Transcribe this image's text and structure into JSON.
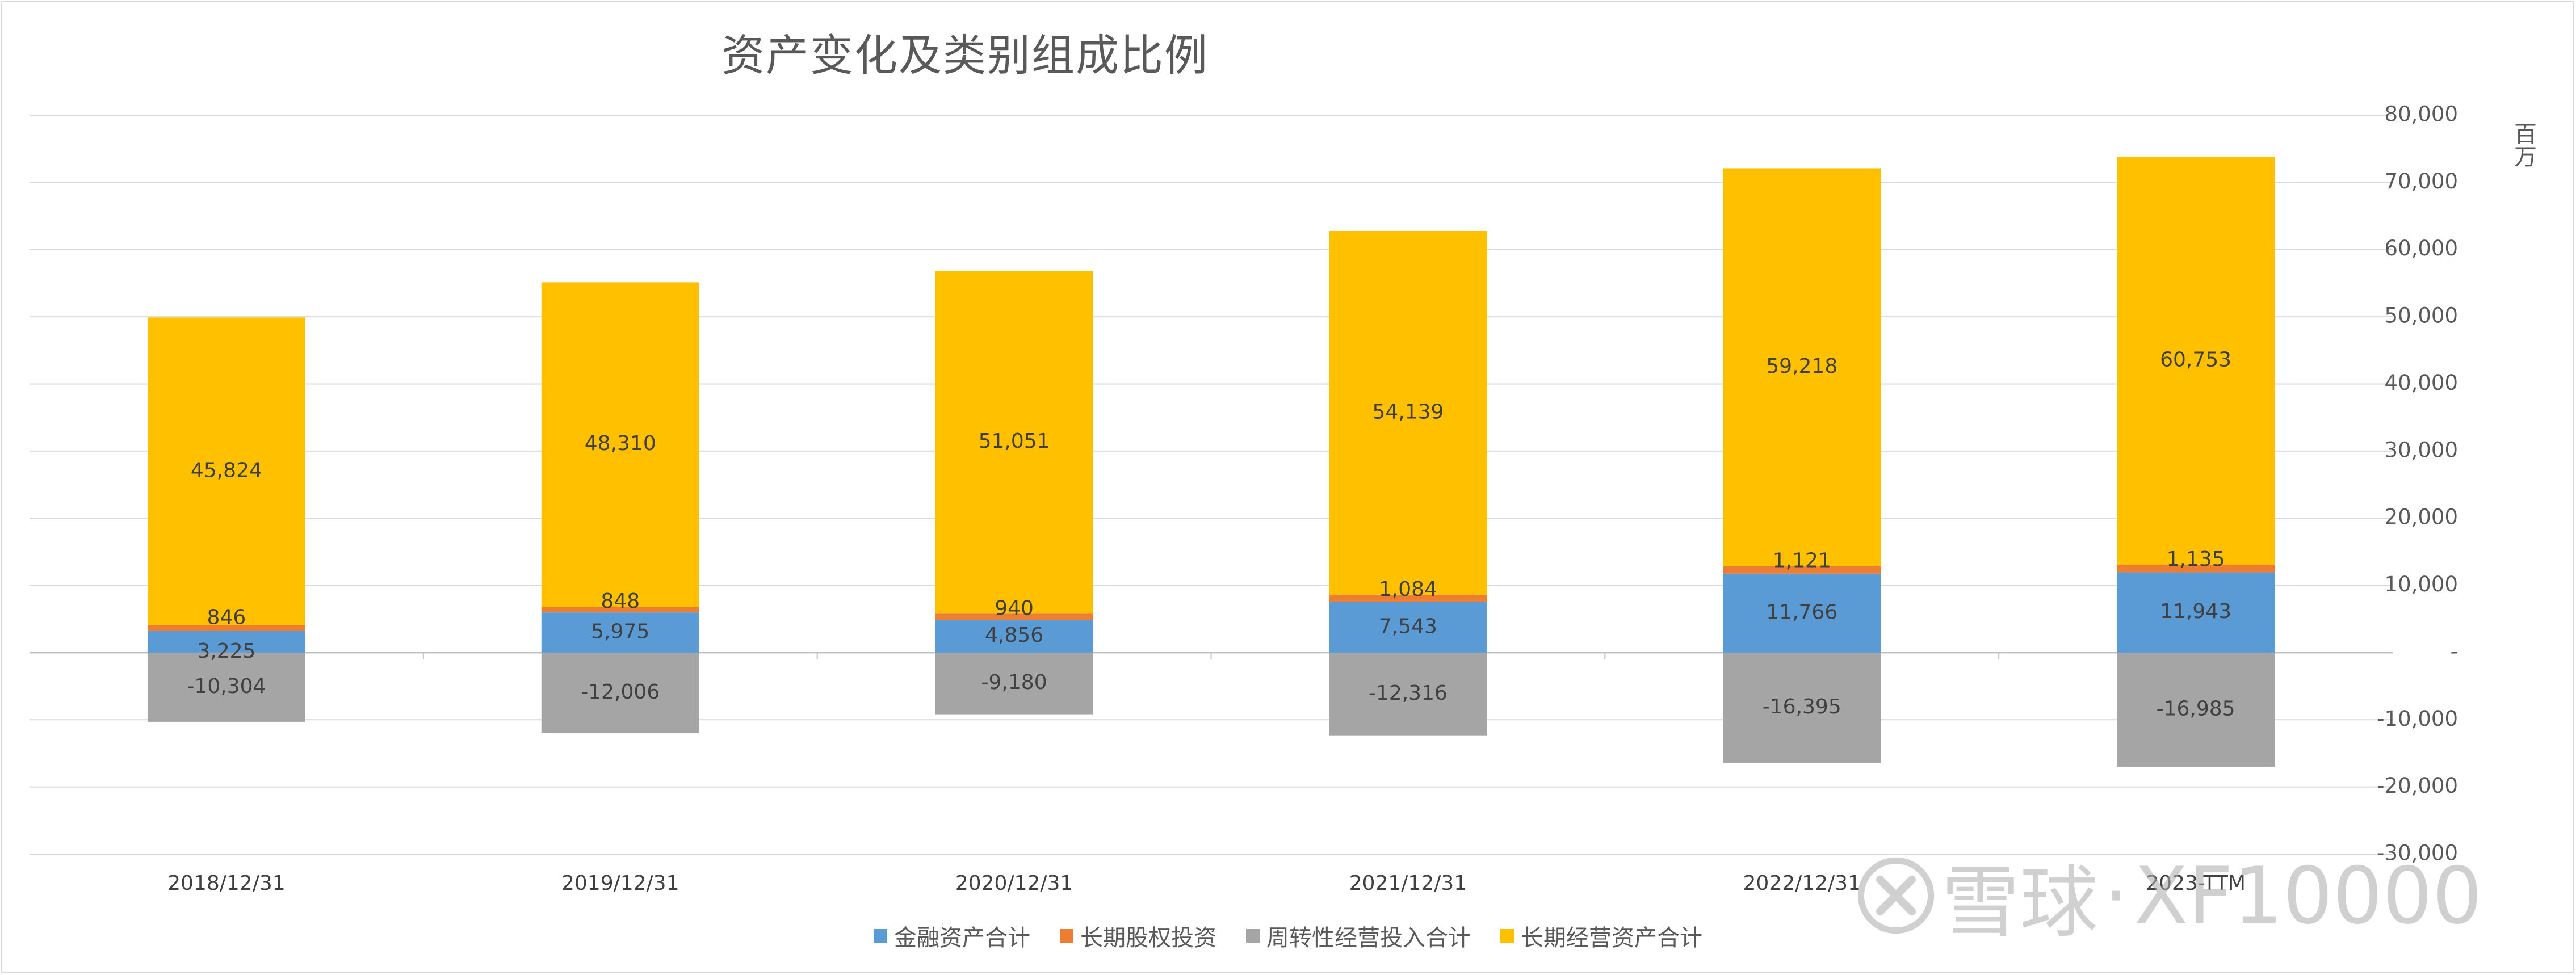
{
  "chart_data": {
    "type": "bar",
    "stacked": true,
    "title": "资产变化及类别组成比例",
    "y_unit": "百万",
    "categories": [
      "2018/12/31",
      "2019/12/31",
      "2020/12/31",
      "2021/12/31",
      "2022/12/31",
      "2023-TTM"
    ],
    "series": [
      {
        "name": "金融资产合计",
        "color": "#5b9bd5",
        "values": [
          3225,
          5975,
          4856,
          7543,
          11766,
          11943
        ],
        "labels": [
          "3,225",
          "5,975",
          "4,856",
          "7,543",
          "11,766",
          "11,943"
        ]
      },
      {
        "name": "长期股权投资",
        "color": "#ed7d31",
        "values": [
          846,
          848,
          940,
          1084,
          1121,
          1135
        ],
        "labels": [
          "846",
          "848",
          "940",
          "1,084",
          "1,121",
          "1,135"
        ]
      },
      {
        "name": "周转性经营投入合计",
        "color": "#a5a5a5",
        "values": [
          -10304,
          -12006,
          -9180,
          -12316,
          -16395,
          -16985
        ],
        "labels": [
          "-10,304",
          "-12,006",
          "-9,180",
          "-12,316",
          "-16,395",
          "-16,985"
        ]
      },
      {
        "name": "长期经营资产合计",
        "color": "#ffc000",
        "values": [
          45824,
          48310,
          51051,
          54139,
          59218,
          60753
        ],
        "labels": [
          "45,824",
          "48,310",
          "51,051",
          "54,139",
          "59,218",
          "60,753"
        ]
      }
    ],
    "ylim": [
      -30000,
      80000
    ],
    "y_ticks": [
      80000,
      70000,
      60000,
      50000,
      40000,
      30000,
      20000,
      10000,
      0,
      -10000,
      -20000,
      -30000
    ],
    "y_tick_labels": [
      "80,000",
      "70,000",
      "60,000",
      "50,000",
      "40,000",
      "30,000",
      "20,000",
      "10,000",
      "-",
      "-10,000",
      "-20,000",
      "-30,000"
    ],
    "y_axis_side": "right",
    "grid": true,
    "legend_position": "bottom"
  },
  "watermark": {
    "brand": "雪球",
    "separator": "·",
    "handle": "XF10000"
  }
}
